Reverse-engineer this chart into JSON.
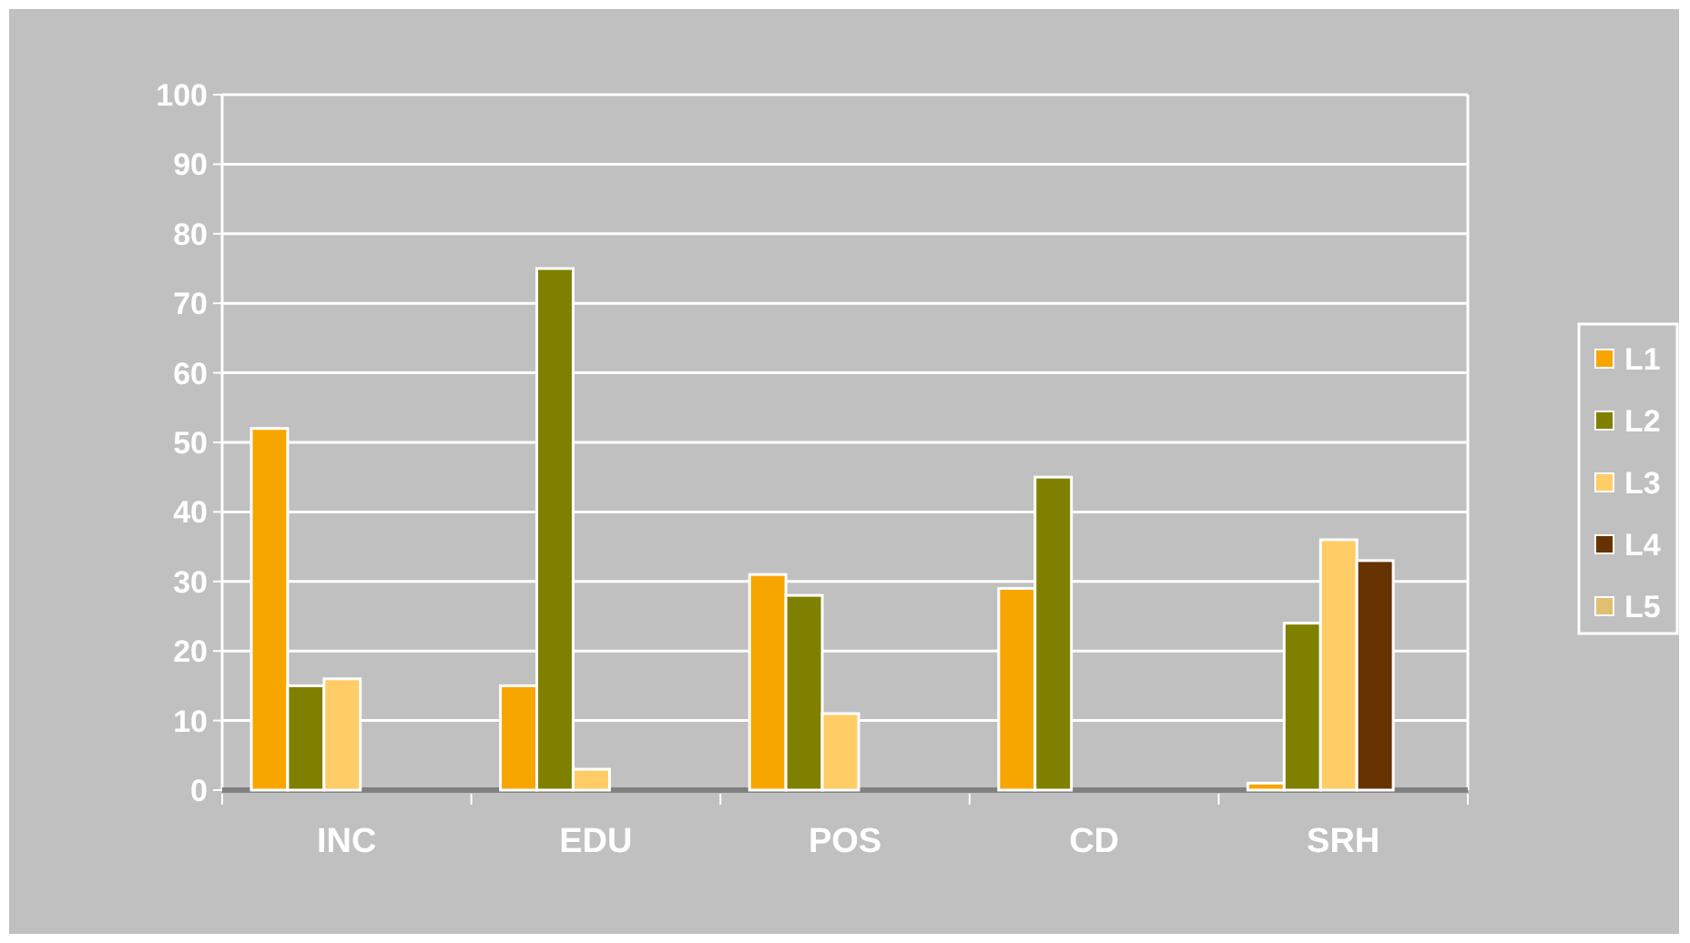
{
  "chart_data": {
    "type": "bar",
    "categories": [
      "INC",
      "EDU",
      "POS",
      "CD",
      "SRH"
    ],
    "series": [
      {
        "name": "L1",
        "color": "#f7a600",
        "values": [
          52,
          15,
          31,
          29,
          1
        ]
      },
      {
        "name": "L2",
        "color": "#808000",
        "values": [
          15,
          75,
          28,
          45,
          24
        ]
      },
      {
        "name": "L3",
        "color": "#ffcc66",
        "values": [
          16,
          3,
          11,
          null,
          36
        ]
      },
      {
        "name": "L4",
        "color": "#663300",
        "values": [
          null,
          null,
          null,
          null,
          33
        ]
      },
      {
        "name": "L5",
        "color": "#e0c070",
        "values": [
          null,
          null,
          null,
          null,
          null
        ]
      }
    ],
    "ylim": [
      0,
      100
    ],
    "yticks": [
      0,
      10,
      20,
      30,
      40,
      50,
      60,
      70,
      80,
      90,
      100
    ],
    "grid": "y",
    "legend": "right"
  }
}
